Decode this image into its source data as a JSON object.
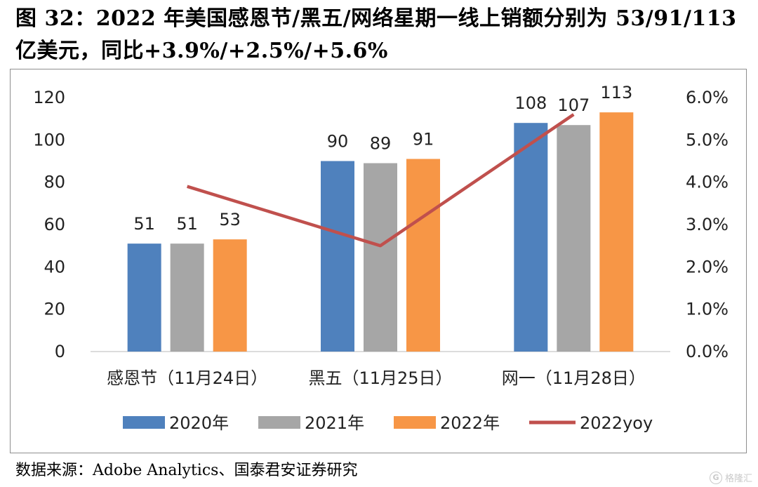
{
  "title": {
    "line1": "图 32：2022 年美国感恩节/黑五/网络星期一线上销额分别为 53/91/113",
    "line2": "亿美元，同比+3.9%/+2.5%/+5.6%"
  },
  "source": "数据来源：Adobe Analytics、国泰君安证券研究",
  "watermark": "格隆汇",
  "chart_data": {
    "type": "bar",
    "categories": [
      "感恩节（11月24日）",
      "黑五（11月25日）",
      "网一（11月28日）"
    ],
    "series": [
      {
        "name": "2020年",
        "kind": "bar",
        "color": "#4f81bd",
        "values": [
          51,
          90,
          108
        ]
      },
      {
        "name": "2021年",
        "kind": "bar",
        "color": "#a6a6a6",
        "values": [
          51,
          89,
          107
        ]
      },
      {
        "name": "2022年",
        "kind": "bar",
        "color": "#f79646",
        "values": [
          53,
          91,
          113
        ]
      },
      {
        "name": "2022yoy",
        "kind": "line",
        "axis": "right",
        "color": "#c0504d",
        "values": [
          3.9,
          2.5,
          5.6
        ]
      }
    ],
    "bar_labels": [
      [
        "51",
        "90",
        "108"
      ],
      [
        "51",
        "89",
        "107"
      ],
      [
        "53",
        "91",
        "113"
      ]
    ],
    "y_left": {
      "ylim": [
        0,
        120
      ],
      "ticks": [
        "0",
        "20",
        "40",
        "60",
        "80",
        "100",
        "120"
      ]
    },
    "y_right": {
      "ylim": [
        0,
        6.0
      ],
      "ticks": [
        "0.0%",
        "1.0%",
        "2.0%",
        "3.0%",
        "4.0%",
        "5.0%",
        "6.0%"
      ]
    },
    "legend_position": "bottom",
    "grid": false
  }
}
